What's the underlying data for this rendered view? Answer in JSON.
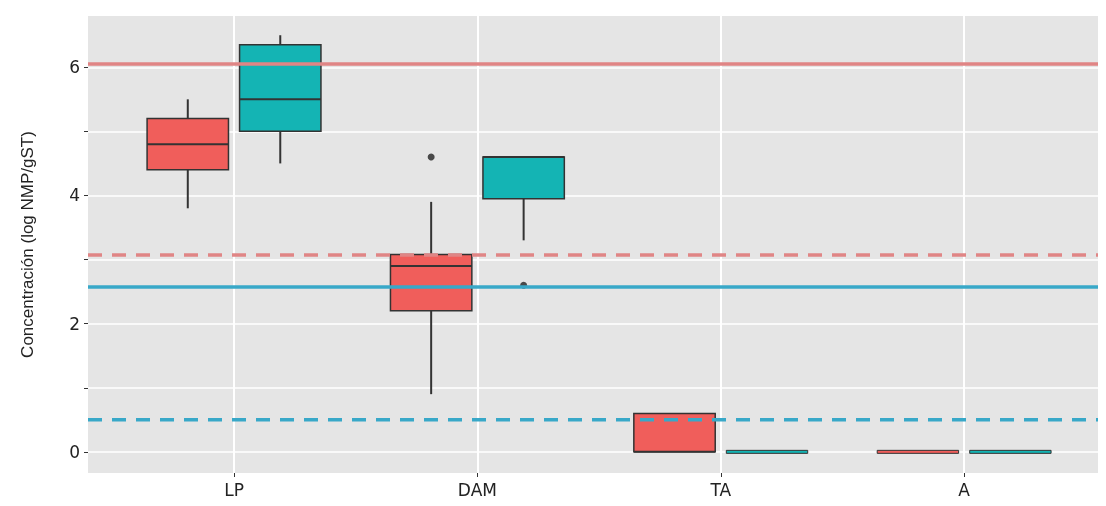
{
  "chart_data": {
    "type": "box",
    "ylabel": "Concentración (log NMP/gST)",
    "categories": [
      "LP",
      "DAM",
      "TA",
      "A"
    ],
    "series": [
      {
        "color": "#f05e5b",
        "boxes": [
          {
            "low": 3.8,
            "q1": 4.4,
            "median": 4.8,
            "q3": 5.2,
            "high": 5.5
          },
          {
            "low": 0.9,
            "q1": 2.2,
            "median": 2.9,
            "q3": 3.08,
            "high": 3.9,
            "outliers": [
              4.6
            ]
          },
          {
            "low": 0,
            "q1": 0,
            "median": 0,
            "q3": 0.6,
            "high": 0.6
          },
          {
            "low": 0,
            "q1": 0,
            "median": 0,
            "q3": 0,
            "high": 0
          }
        ]
      },
      {
        "color": "#14b4b4",
        "boxes": [
          {
            "low": 4.5,
            "q1": 5.0,
            "median": 5.5,
            "q3": 6.35,
            "high": 6.5
          },
          {
            "low": 3.3,
            "q1": 3.95,
            "median": 4.6,
            "q3": 4.6,
            "high": 4.6,
            "outliers": [
              2.6
            ]
          },
          {
            "low": 0,
            "q1": 0,
            "median": 0,
            "q3": 0,
            "high": 0
          },
          {
            "low": 0,
            "q1": 0,
            "median": 0,
            "q3": 0,
            "high": 0
          }
        ]
      }
    ],
    "ylim": [
      -0.33,
      6.8
    ],
    "yticks": [
      0,
      {
        "value": 1,
        "label": null
      },
      2,
      {
        "value": 3,
        "label": null
      },
      4,
      {
        "value": 5,
        "label": null
      },
      6
    ],
    "ref_lines": [
      {
        "axis": "y",
        "value": 6.05,
        "color": "#e08585",
        "line_style": "solid"
      },
      {
        "axis": "y",
        "value": 3.07,
        "color": "#e08585",
        "line_style": "dashed"
      },
      {
        "axis": "y",
        "value": 2.57,
        "color": "#38a8c8",
        "line_style": "solid"
      },
      {
        "axis": "y",
        "value": 0.5,
        "color": "#38a8c8",
        "line_style": "dashed"
      }
    ],
    "grid": true
  }
}
